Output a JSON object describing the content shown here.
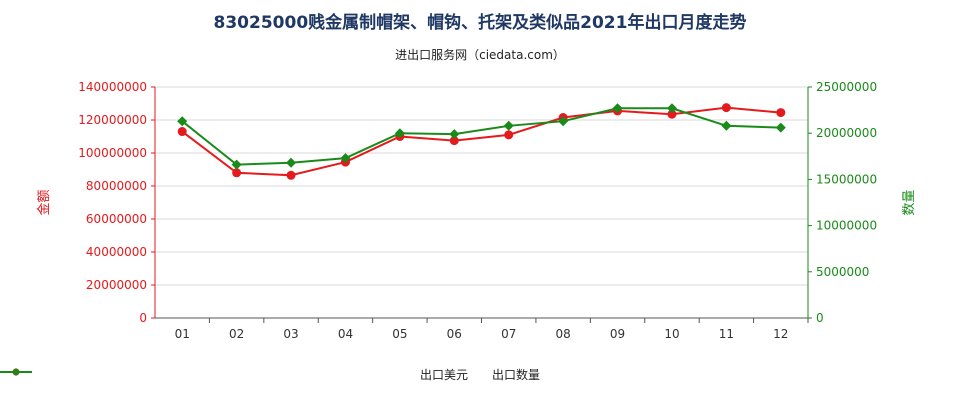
{
  "chart_data": {
    "type": "line",
    "title": "83025000贱金属制帽架、帽钩、托架及类似品2021年出口月度走势",
    "subtitle": "进出口服务网（ciedata.com）",
    "categories": [
      "01",
      "02",
      "03",
      "04",
      "05",
      "06",
      "07",
      "08",
      "09",
      "10",
      "11",
      "12"
    ],
    "y_left": {
      "label": "金额",
      "ylim": [
        0,
        140000000
      ],
      "ticks": [
        "0",
        "20000000",
        "40000000",
        "60000000",
        "80000000",
        "100000000",
        "120000000",
        "140000000"
      ],
      "color": "#e41a1c"
    },
    "y_right": {
      "label": "数量",
      "ylim": [
        0,
        25000000
      ],
      "ticks": [
        "0",
        "5000000",
        "10000000",
        "15000000",
        "20000000",
        "25000000"
      ],
      "color": "#1a8a1a"
    },
    "series": [
      {
        "name": "出口美元",
        "axis": "left",
        "color": "#e41a1c",
        "values": [
          113000000,
          88000000,
          86500000,
          94500000,
          110000000,
          107500000,
          111000000,
          121500000,
          125500000,
          123500000,
          127500000,
          124500000
        ]
      },
      {
        "name": "出口数量",
        "axis": "right",
        "color": "#1a8a1a",
        "values": [
          21300000,
          16600000,
          16800000,
          17300000,
          20000000,
          19900000,
          20800000,
          21300000,
          22700000,
          22700000,
          20800000,
          20600000
        ]
      }
    ],
    "grid": true,
    "legend_position": "bottom"
  }
}
